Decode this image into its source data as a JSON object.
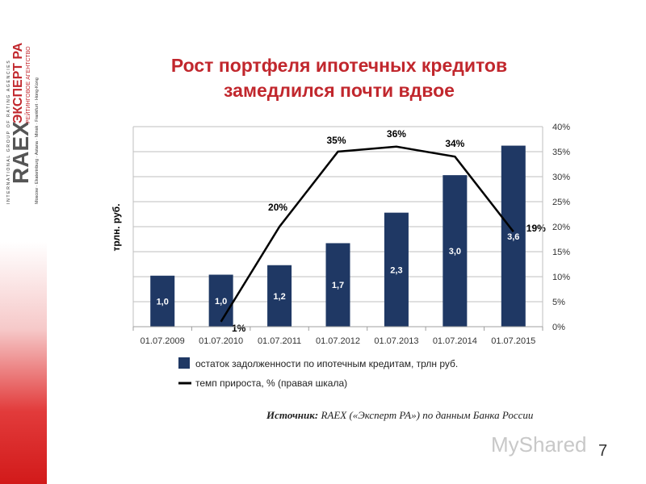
{
  "logo": {
    "brand": "RAEX",
    "name": "ЭКСПЕРТ РА",
    "subtitle": "РЕЙТИНГОВОЕ АГЕНТСТВО",
    "tagline": "INTERNATIONAL GROUP OF RATING AGENCIES",
    "cities": "Moscow · Ekaterinburg · Astana · Minsk · Frankfurt · Hong-Kong"
  },
  "slide": {
    "title_line1": "Рост портфеля ипотечных кредитов",
    "title_line2": "замедлился почти вдвое",
    "source_label": "Источник:",
    "source_text": " RAEX («Эксперт РА») по данным Банка России",
    "page_number": "7",
    "watermark": "MyShared"
  },
  "chart_data": {
    "type": "bar",
    "categories": [
      "01.07.2009",
      "01.07.2010",
      "01.07.2011",
      "01.07.2012",
      "01.07.2013",
      "01.07.2014",
      "01.07.2015"
    ],
    "ylabel": "трлн. руб.",
    "ylim": [
      0,
      40
    ],
    "y2lim": [
      0,
      40
    ],
    "y2_ticks": [
      "0%",
      "5%",
      "10%",
      "15%",
      "20%",
      "25%",
      "30%",
      "35%",
      "40%"
    ],
    "grid": true,
    "legend_position": "bottom",
    "series": [
      {
        "name": "остаток задолженности по ипотечным кредитам, трлн руб.",
        "kind": "bar",
        "color": "#1f3864",
        "values": [
          1.0,
          1.0,
          1.2,
          1.7,
          2.3,
          3.0,
          3.6
        ],
        "labels": [
          "1,0",
          "1,0",
          "1,2",
          "1,7",
          "2,3",
          "3,0",
          "3,6"
        ],
        "plot_scale_values": [
          10.2,
          10.4,
          12.3,
          16.7,
          22.8,
          30.3,
          36.2
        ]
      },
      {
        "name": "темп прироста, % (правая шкала)",
        "kind": "line",
        "color": "#000000",
        "values": [
          null,
          1,
          20,
          35,
          36,
          34,
          19
        ],
        "labels": [
          "",
          "1%",
          "20%",
          "35%",
          "36%",
          "34%",
          "19%"
        ]
      }
    ]
  }
}
